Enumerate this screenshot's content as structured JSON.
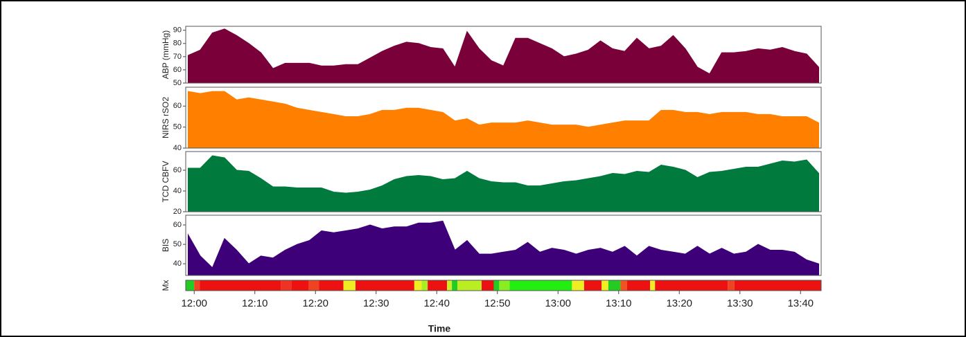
{
  "chart_data": [
    {
      "type": "area",
      "ylabel": "ABP (mmHg)",
      "color": "#7a0039",
      "x": [
        719,
        721,
        723,
        725,
        727,
        729,
        731,
        733,
        735,
        737,
        739,
        741,
        743,
        745,
        747,
        749,
        751,
        753,
        755,
        757,
        759,
        761,
        763,
        765,
        767,
        769,
        771,
        773,
        775,
        777,
        779,
        781,
        783,
        785,
        787,
        789,
        791,
        793,
        795,
        797,
        799,
        801,
        803,
        805,
        807,
        809,
        811,
        813,
        815,
        817,
        819,
        821,
        823
      ],
      "values": [
        71,
        75,
        88,
        91,
        86,
        80,
        73,
        61,
        65,
        65,
        65,
        63,
        63,
        64,
        64,
        69,
        74,
        78,
        81,
        80,
        77,
        76,
        62,
        89,
        76,
        67,
        63,
        84,
        84,
        80,
        76,
        70,
        72,
        75,
        82,
        76,
        74,
        84,
        76,
        78,
        86,
        76,
        62,
        57,
        73,
        73,
        74,
        76,
        75,
        77,
        74,
        72,
        62
      ],
      "xlim": [
        718.6,
        823.4
      ],
      "ylim": [
        50,
        93
      ],
      "yticks": [
        50,
        60,
        70,
        80,
        90
      ]
    },
    {
      "type": "area",
      "ylabel": "NIRS rSO2",
      "color": "#ff8000",
      "x": [
        719,
        721,
        723,
        725,
        727,
        729,
        731,
        733,
        735,
        737,
        739,
        741,
        743,
        745,
        747,
        749,
        751,
        753,
        755,
        757,
        759,
        761,
        763,
        765,
        767,
        769,
        771,
        773,
        775,
        777,
        779,
        781,
        783,
        785,
        787,
        789,
        791,
        793,
        795,
        797,
        799,
        801,
        803,
        805,
        807,
        809,
        811,
        813,
        815,
        817,
        819,
        821,
        823
      ],
      "values": [
        67,
        66,
        67,
        67,
        63,
        64,
        63,
        62,
        61,
        59,
        58,
        57,
        56,
        55,
        55,
        56,
        58,
        58,
        59,
        59,
        58,
        57,
        53,
        54,
        51,
        52,
        52,
        52,
        53,
        52,
        51,
        51,
        51,
        50,
        51,
        52,
        53,
        53,
        53,
        58,
        58,
        57,
        57,
        56,
        57,
        57,
        57,
        56,
        56,
        55,
        55,
        55,
        52
      ],
      "xlim": [
        718.6,
        823.4
      ],
      "ylim": [
        40,
        69
      ],
      "yticks": [
        40,
        50,
        60
      ]
    },
    {
      "type": "area",
      "ylabel": "TCD CBFV",
      "color": "#007a3d",
      "x": [
        719,
        721,
        723,
        725,
        727,
        729,
        731,
        733,
        735,
        737,
        739,
        741,
        743,
        745,
        747,
        749,
        751,
        753,
        755,
        757,
        759,
        761,
        763,
        765,
        767,
        769,
        771,
        773,
        775,
        777,
        779,
        781,
        783,
        785,
        787,
        789,
        791,
        793,
        795,
        797,
        799,
        801,
        803,
        805,
        807,
        809,
        811,
        813,
        815,
        817,
        819,
        821,
        823
      ],
      "values": [
        62,
        62,
        74,
        72,
        60,
        59,
        52,
        44,
        44,
        43,
        43,
        43,
        39,
        38,
        39,
        41,
        45,
        51,
        54,
        55,
        54,
        51,
        52,
        59,
        52,
        49,
        48,
        48,
        45,
        45,
        47,
        49,
        50,
        52,
        54,
        57,
        56,
        59,
        58,
        65,
        63,
        60,
        53,
        58,
        59,
        61,
        63,
        63,
        66,
        69,
        68,
        70,
        57
      ],
      "xlim": [
        718.6,
        823.4
      ],
      "ylim": [
        20,
        78
      ],
      "yticks": [
        20,
        40,
        60
      ]
    },
    {
      "type": "area",
      "ylabel": "BIS",
      "color": "#3e0078",
      "x": [
        719,
        721,
        723,
        725,
        727,
        729,
        731,
        733,
        735,
        737,
        739,
        741,
        743,
        745,
        747,
        749,
        751,
        753,
        755,
        757,
        759,
        761,
        763,
        765,
        767,
        769,
        771,
        773,
        775,
        777,
        779,
        781,
        783,
        785,
        787,
        789,
        791,
        793,
        795,
        797,
        799,
        801,
        803,
        805,
        807,
        809,
        811,
        813,
        815,
        817,
        819,
        821,
        823
      ],
      "values": [
        55,
        44,
        38,
        53,
        47,
        40,
        44,
        43,
        47,
        50,
        52,
        57,
        56,
        57,
        58,
        60,
        58,
        59,
        59,
        61,
        61,
        62,
        47,
        52,
        45,
        45,
        46,
        47,
        51,
        46,
        48,
        47,
        45,
        47,
        48,
        46,
        49,
        44,
        49,
        47,
        46,
        45,
        49,
        45,
        48,
        45,
        46,
        50,
        47,
        47,
        46,
        42,
        40
      ],
      "xlim": [
        718.6,
        823.4
      ],
      "ylim": [
        34,
        65
      ],
      "yticks": [
        40,
        50,
        60
      ]
    },
    {
      "type": "heatstrip",
      "ylabel": "Mx",
      "xlabel": "Time",
      "bins": [
        718.6,
        720,
        720.9,
        734.3,
        736,
        738.9,
        740.6,
        744.6,
        746.6,
        756.3,
        757.5,
        758.5,
        761.7,
        762.5,
        763.4,
        767.4,
        769.4,
        770.3,
        772,
        782.3,
        784.3,
        787.2,
        788.3,
        790.3,
        791.4,
        795.2,
        796,
        808,
        809.1,
        823.4
      ],
      "colors": [
        "#22cc22",
        "#ee4422",
        "#ee1111",
        "#ee3322",
        "#ee1111",
        "#ee4422",
        "#ee1111",
        "#eeee22",
        "#ee1111",
        "#eeee22",
        "#aaee22",
        "#ee1111",
        "#ccee22",
        "#22cc22",
        "#bbee22",
        "#ee1111",
        "#22cc22",
        "#88ee22",
        "#22ee11",
        "#eeee22",
        "#ee1111",
        "#eeee22",
        "#22cc22",
        "#ee5522",
        "#ee1111",
        "#eeee22",
        "#ee1111",
        "#ee4422",
        "#ee1111"
      ],
      "xlim": [
        718.6,
        823.4
      ],
      "xticks": [
        {
          "value": 720,
          "label": "12:00"
        },
        {
          "value": 730,
          "label": "12:10"
        },
        {
          "value": 740,
          "label": "12:20"
        },
        {
          "value": 750,
          "label": "12:30"
        },
        {
          "value": 760,
          "label": "12:40"
        },
        {
          "value": 770,
          "label": "12:50"
        },
        {
          "value": 780,
          "label": "13:00"
        },
        {
          "value": 790,
          "label": "13:10"
        },
        {
          "value": 800,
          "label": "13:20"
        },
        {
          "value": 810,
          "label": "13:30"
        },
        {
          "value": 820,
          "label": "13:40"
        }
      ]
    }
  ]
}
